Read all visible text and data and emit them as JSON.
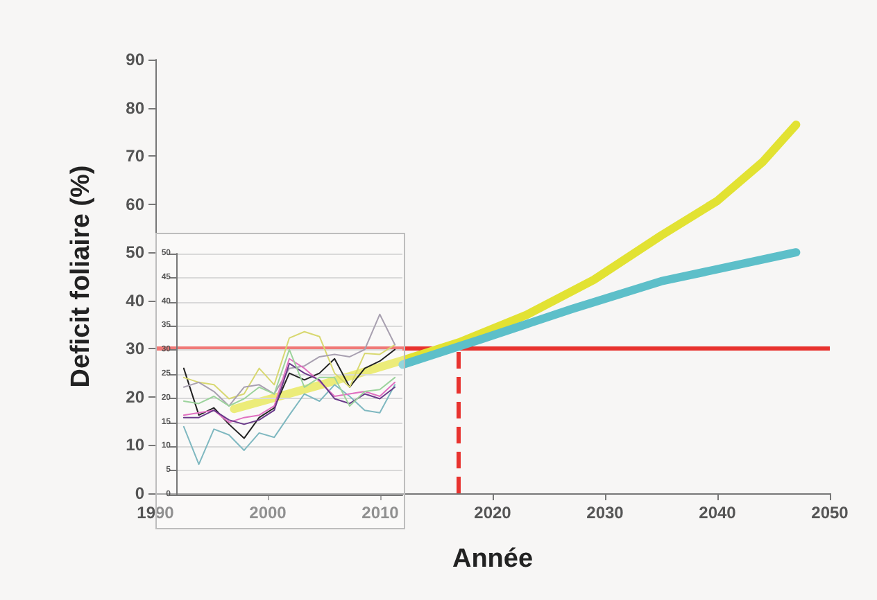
{
  "chart_data": [
    {
      "type": "line",
      "xlabel": "Année",
      "ylabel": "Deficit foliaire (%)",
      "xlim": [
        1990,
        2050
      ],
      "xticks": [
        1990,
        2000,
        2010,
        2020,
        2030,
        2040,
        2050
      ],
      "ylim": [
        0,
        90
      ],
      "yticks": [
        0,
        10,
        20,
        30,
        40,
        50,
        60,
        70,
        80,
        90
      ],
      "grid": false,
      "marker": "none",
      "line_style": "solid",
      "series": [
        {
          "color": "#e2e232",
          "x": [
            1997,
            2005,
            2012,
            2017,
            2023,
            2029,
            2035,
            2040,
            2044,
            2047
          ],
          "values": [
            17.5,
            22.7,
            27.6,
            31.3,
            37,
            44.3,
            53.5,
            60.7,
            68.7,
            76.5
          ]
        },
        {
          "color": "#5dbfc9",
          "x": [
            2012,
            2019,
            2027,
            2035,
            2047
          ],
          "values": [
            26.7,
            32,
            38.2,
            44,
            50
          ]
        }
      ],
      "ref_lines": [
        {
          "axis": "y",
          "value": 30,
          "color": "#e8322e",
          "line_style": "solid"
        },
        {
          "axis": "x",
          "value": 2017,
          "color": "#e8322e",
          "line_style": "dashed"
        }
      ]
    },
    {
      "type": "line",
      "categories": [
        null,
        null,
        null,
        null,
        null,
        null,
        null,
        null,
        null,
        null,
        null,
        null,
        null,
        null,
        null
      ],
      "ylim": [
        0,
        50
      ],
      "yticks": [
        0,
        5,
        10,
        15,
        20,
        25,
        30,
        35,
        40,
        45,
        50
      ],
      "grid": "y",
      "marker": "none",
      "line_style": "solid",
      "series": [
        {
          "color": "#7fb8c0",
          "values": [
            14.1,
            6.3,
            13.6,
            12.4,
            9.2,
            12.8,
            11.9,
            16.5,
            20.9,
            19.4,
            22.8,
            20.4,
            17.5,
            17,
            22.8
          ]
        },
        {
          "color": "#222222",
          "values": [
            26.2,
            16.5,
            18,
            14.6,
            11.7,
            16,
            18,
            25.2,
            23.8,
            25.2,
            28.2,
            22.3,
            26.2,
            27.7,
            30.1
          ]
        },
        {
          "color": "#d8d870",
          "values": [
            24.3,
            23.3,
            22.8,
            19.9,
            20.9,
            26.2,
            22.8,
            32.5,
            33.8,
            32.8,
            25.2,
            22.3,
            29.3,
            29.1,
            31.1
          ]
        },
        {
          "color": "#a8a0b0",
          "values": [
            22.3,
            23.3,
            21.4,
            18.4,
            22.3,
            22.8,
            20.9,
            26.2,
            26.7,
            28.6,
            29.1,
            28.6,
            30.1,
            37.4,
            31.1
          ]
        },
        {
          "color": "#e070c0",
          "values": [
            16.5,
            17,
            17.5,
            15,
            16,
            16.5,
            18.4,
            28.2,
            26.2,
            23.5,
            20.4,
            20.9,
            21.4,
            20.4,
            23.3
          ]
        },
        {
          "color": "#6a3a8a",
          "values": [
            16,
            16,
            17.5,
            15.5,
            14.6,
            15.5,
            17.5,
            27.2,
            25.2,
            23.8,
            19.9,
            18.9,
            20.9,
            19.9,
            22.3
          ]
        },
        {
          "color": "#9cd39c",
          "values": [
            19.4,
            18.9,
            20.4,
            18.4,
            19.9,
            22.3,
            20.9,
            30.1,
            22.3,
            24.3,
            24.3,
            18.4,
            21.4,
            21.8,
            24.3
          ]
        }
      ]
    }
  ]
}
